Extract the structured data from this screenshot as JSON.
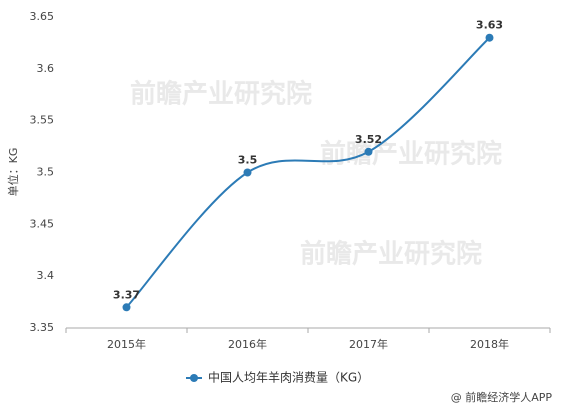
{
  "chart_data": {
    "type": "line",
    "y_label": "单位：KG",
    "categories": [
      "2015年",
      "2016年",
      "2017年",
      "2018年"
    ],
    "series": [
      {
        "name": "中国人均年羊肉消费量（KG）",
        "color": "#2c7bb6",
        "values": [
          3.37,
          3.5,
          3.52,
          3.63
        ]
      }
    ],
    "ylim": [
      3.35,
      3.65
    ],
    "yticks": [
      3.35,
      3.4,
      3.45,
      3.5,
      3.55,
      3.6,
      3.65
    ],
    "grid": false,
    "smooth": true,
    "legend": "bottom"
  },
  "watermark": "前瞻产业研究院",
  "footer": "@ 前瞻经济学人APP"
}
